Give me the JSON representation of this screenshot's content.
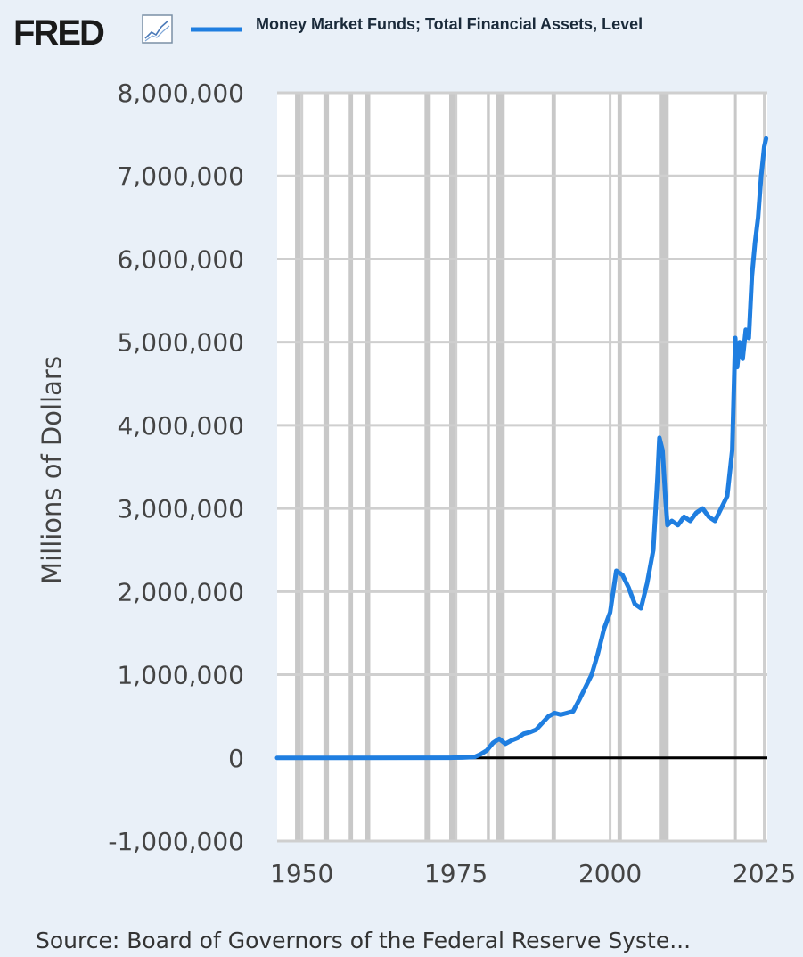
{
  "header": {
    "logo_text": "FRED",
    "logo_icon": "chart-line-icon",
    "series_title": "Money Market Funds; Total Financial Assets, Level"
  },
  "footer": {
    "source": "Source: Board of Governors of the Federal Reserve Syste..."
  },
  "colors": {
    "background": "#e9f0f8",
    "plot_background": "#ffffff",
    "series_line": "#1f7ee0",
    "recession_shading": "#c8c8c8",
    "grid": "#cfcfcf",
    "zero_line": "#000000",
    "logo": "#1a1a1a"
  },
  "chart_data": {
    "type": "line",
    "title": "",
    "xlabel": "",
    "ylabel": "Millions of Dollars",
    "xlim": [
      1946,
      2025.5
    ],
    "ylim": [
      -1000000,
      8000000
    ],
    "x_ticks": [
      1950,
      1975,
      2000,
      2025
    ],
    "y_ticks": [
      -1000000,
      0,
      1000000,
      2000000,
      3000000,
      4000000,
      5000000,
      6000000,
      7000000,
      8000000
    ],
    "y_tick_labels": [
      "-1,000,000",
      "0",
      "1,000,000",
      "2,000,000",
      "3,000,000",
      "4,000,000",
      "5,000,000",
      "6,000,000",
      "7,000,000",
      "8,000,000"
    ],
    "x_tick_labels": [
      "1950",
      "1975",
      "2000",
      "2025"
    ],
    "grid": true,
    "legend": "top",
    "recessions": [
      [
        1948.9,
        1949.8
      ],
      [
        1953.5,
        1954.4
      ],
      [
        1957.6,
        1958.3
      ],
      [
        1960.3,
        1961.1
      ],
      [
        1969.9,
        1970.9
      ],
      [
        1973.9,
        1975.2
      ],
      [
        1980.0,
        1980.5
      ],
      [
        1981.5,
        1982.9
      ],
      [
        1990.5,
        1991.2
      ],
      [
        2001.2,
        2001.9
      ],
      [
        2007.9,
        2009.5
      ],
      [
        2020.1,
        2020.4
      ]
    ],
    "series": [
      {
        "name": "Money Market Funds; Total Financial Assets, Level",
        "x": [
          1946,
          1952,
          1974,
          1976,
          1978,
          1979,
          1980,
          1981,
          1982,
          1983,
          1984,
          1985,
          1986,
          1987,
          1988,
          1989,
          1990,
          1991,
          1992,
          1993,
          1994,
          1995,
          1996,
          1997,
          1998,
          1999,
          2000,
          2001,
          2002,
          2003,
          2004,
          2005,
          2006,
          2007,
          2007.7,
          2008,
          2008.5,
          2009,
          2009.3,
          2010,
          2011,
          2012,
          2013,
          2014,
          2015,
          2016,
          2017,
          2018,
          2019,
          2019.8,
          2020.1,
          2020.3,
          2020.6,
          2021,
          2021.5,
          2022,
          2022.5,
          2023,
          2023.5,
          2024,
          2024.5,
          2025,
          2025.3
        ],
        "values": [
          0,
          0,
          2000,
          4000,
          10000,
          45000,
          90000,
          180000,
          230000,
          170000,
          210000,
          240000,
          290000,
          310000,
          340000,
          420000,
          500000,
          540000,
          520000,
          540000,
          560000,
          700000,
          850000,
          1000000,
          1250000,
          1550000,
          1750000,
          2250000,
          2200000,
          2050000,
          1850000,
          1800000,
          2100000,
          2500000,
          3400000,
          3850000,
          3700000,
          3100000,
          2800000,
          2850000,
          2800000,
          2900000,
          2850000,
          2950000,
          3000000,
          2900000,
          2850000,
          3000000,
          3150000,
          3700000,
          4500000,
          5050000,
          4700000,
          5000000,
          4800000,
          5150000,
          5050000,
          5800000,
          6200000,
          6500000,
          7000000,
          7350000,
          7450000
        ]
      }
    ]
  }
}
